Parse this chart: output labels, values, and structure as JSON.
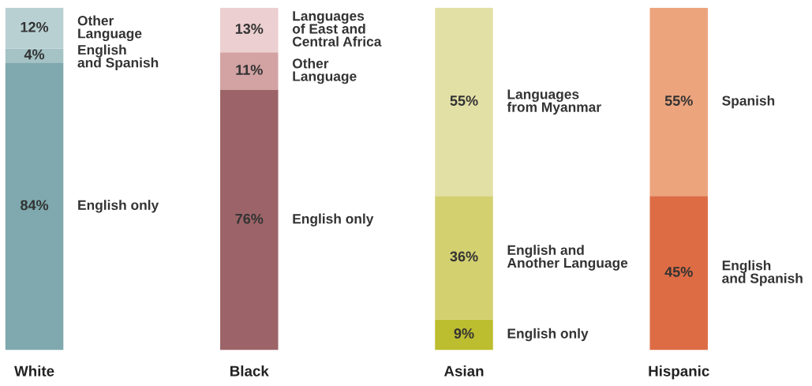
{
  "chart_data": {
    "type": "bar",
    "stacked": true,
    "categories": [
      "White",
      "Black",
      "Asian",
      "Hispanic"
    ],
    "series": [
      {
        "name": "English only",
        "color": "#7fa9ae",
        "values": [
          84,
          null,
          null,
          null
        ],
        "value_labels": [
          "84%",
          null,
          null,
          null
        ]
      },
      {
        "name": "English\nand Spanish",
        "color": "#a5c3c5",
        "values": [
          4,
          null,
          null,
          null
        ],
        "value_labels": [
          "4%",
          null,
          null,
          null
        ]
      },
      {
        "name": "Other\nLanguage",
        "color": "#b9d0d2",
        "values": [
          12,
          null,
          null,
          null
        ],
        "value_labels": [
          "12%",
          null,
          null,
          null
        ]
      },
      {
        "name": "English only",
        "color": "#9c6468",
        "values": [
          null,
          76,
          null,
          null
        ],
        "value_labels": [
          null,
          "76%",
          null,
          null
        ]
      },
      {
        "name": "Other\nLanguage",
        "color": "#d3a2a3",
        "values": [
          null,
          11,
          null,
          null
        ],
        "value_labels": [
          null,
          "11%",
          null,
          null
        ]
      },
      {
        "name": "Languages\nof East and\nCentral Africa",
        "color": "#eccfd0",
        "values": [
          null,
          13,
          null,
          null
        ],
        "value_labels": [
          null,
          "13%",
          null,
          null
        ]
      },
      {
        "name": "English only",
        "color": "#bdbd30",
        "values": [
          null,
          null,
          9,
          null
        ],
        "value_labels": [
          null,
          null,
          "9%",
          null
        ]
      },
      {
        "name": "English and\nAnother Language",
        "color": "#d3d070",
        "values": [
          null,
          null,
          36,
          null
        ],
        "value_labels": [
          null,
          null,
          "36%",
          null
        ]
      },
      {
        "name": "Languages\nfrom Myanmar",
        "color": "#e3e0a6",
        "values": [
          null,
          null,
          55,
          null
        ],
        "value_labels": [
          null,
          null,
          "55%",
          null
        ]
      },
      {
        "name": "English\nand Spanish",
        "color": "#dd6c45",
        "values": [
          null,
          null,
          null,
          45
        ],
        "value_labels": [
          null,
          null,
          null,
          "45%"
        ]
      },
      {
        "name": "Spanish",
        "color": "#eca47d",
        "values": [
          null,
          null,
          null,
          55
        ],
        "value_labels": [
          null,
          null,
          null,
          "55%"
        ]
      }
    ]
  }
}
